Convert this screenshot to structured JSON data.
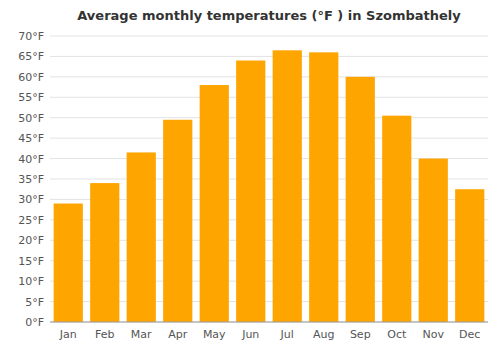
{
  "chart_data": {
    "type": "bar",
    "title": "Average monthly temperatures (°F ) in Szombathely",
    "categories": [
      "Jan",
      "Feb",
      "Mar",
      "Apr",
      "May",
      "Jun",
      "Jul",
      "Aug",
      "Sep",
      "Oct",
      "Nov",
      "Dec"
    ],
    "values": [
      29,
      34,
      41.5,
      49.5,
      58,
      64,
      66.5,
      66,
      60,
      50.5,
      40,
      32.5
    ],
    "color": "#FFA500",
    "ylim": [
      0,
      70
    ],
    "yticks": [
      {
        "value": 0,
        "label": "0°F"
      },
      {
        "value": 5,
        "label": "5°F"
      },
      {
        "value": 10,
        "label": "10°F"
      },
      {
        "value": 15,
        "label": "15°F"
      },
      {
        "value": 20,
        "label": "20°F"
      },
      {
        "value": 25,
        "label": "25°F"
      },
      {
        "value": 30,
        "label": "30°F"
      },
      {
        "value": 35,
        "label": "35°F"
      },
      {
        "value": 40,
        "label": "40°F"
      },
      {
        "value": 45,
        "label": "45°F"
      },
      {
        "value": 50,
        "label": "50°F"
      },
      {
        "value": 55,
        "label": "55°F"
      },
      {
        "value": 60,
        "label": "60°F"
      },
      {
        "value": 65,
        "label": "65°F"
      },
      {
        "value": 70,
        "label": "70°F"
      }
    ],
    "grid": true
  }
}
